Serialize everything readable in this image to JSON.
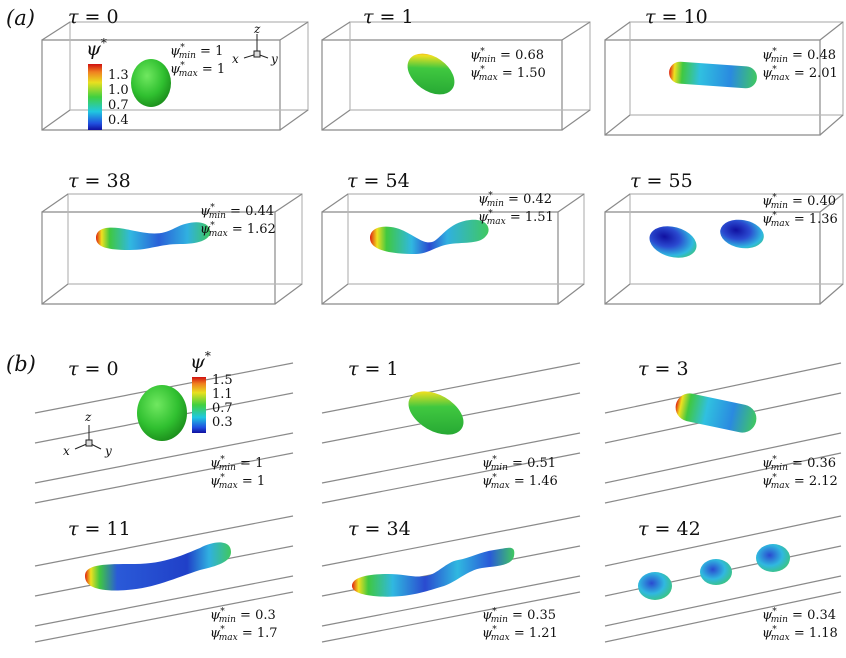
{
  "figure": {
    "part_a_label": "(a)",
    "part_b_label": "(b)",
    "tau_symbol": "τ = ",
    "psi_min_label": "ψ*min = ",
    "psi_max_label": "ψ*max = ",
    "colorbar_a": {
      "title": "ψ*",
      "ticks": [
        "1.3",
        "1.0",
        "0.7",
        "0.4"
      ]
    },
    "colorbar_b": {
      "title": "ψ*",
      "ticks": [
        "1.5",
        "1.1",
        "0.7",
        "0.3"
      ]
    },
    "axes_labels": {
      "x": "x",
      "y": "y",
      "z": "z"
    },
    "panels_a": [
      {
        "tau": "0",
        "psi_min": "1",
        "psi_max": "1"
      },
      {
        "tau": "1",
        "psi_min": "0.68",
        "psi_max": "1.50"
      },
      {
        "tau": "10",
        "psi_min": "0.48",
        "psi_max": "2.01"
      },
      {
        "tau": "38",
        "psi_min": "0.44",
        "psi_max": "1.62"
      },
      {
        "tau": "54",
        "psi_min": "0.42",
        "psi_max": "1.51"
      },
      {
        "tau": "55",
        "psi_min": "0.40",
        "psi_max": "1.36"
      }
    ],
    "panels_b": [
      {
        "tau": "0",
        "psi_min": "1",
        "psi_max": "1"
      },
      {
        "tau": "1",
        "psi_min": "0.51",
        "psi_max": "1.46"
      },
      {
        "tau": "3",
        "psi_min": "0.36",
        "psi_max": "2.12"
      },
      {
        "tau": "11",
        "psi_min": "0.3",
        "psi_max": "1.7"
      },
      {
        "tau": "34",
        "psi_min": "0.35",
        "psi_max": "1.21"
      },
      {
        "tau": "42",
        "psi_min": "0.34",
        "psi_max": "1.18"
      }
    ],
    "colors": {
      "red": "#e02010",
      "yellow": "#f0e020",
      "green": "#30c030",
      "cyan": "#30c8e8",
      "blue": "#1a40d0",
      "dark_blue": "#1010a0",
      "box_line": "#8a8a8a"
    }
  }
}
